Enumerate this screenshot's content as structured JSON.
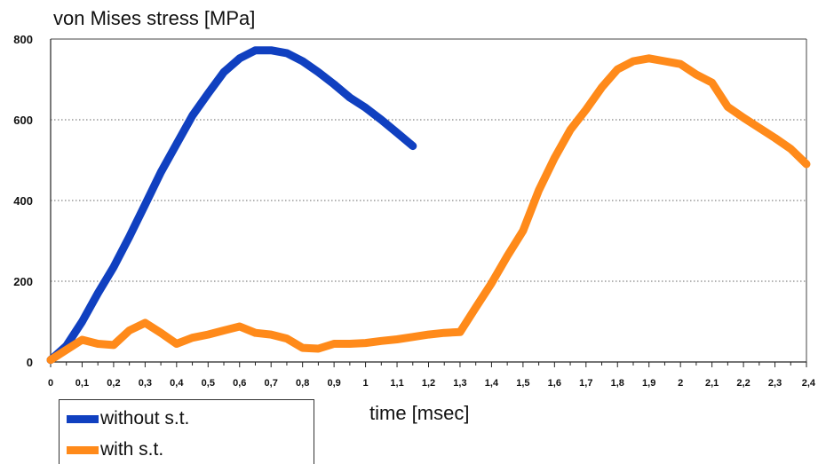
{
  "chart_data": {
    "type": "line",
    "title": "",
    "ylabel": "von Mises stress [MPa]",
    "xlabel": "time [msec]",
    "xlim": [
      0,
      2.4
    ],
    "ylim": [
      0,
      800
    ],
    "yticks": [
      0,
      200,
      400,
      600,
      800
    ],
    "ytick_labels": [
      "0",
      "200",
      "400",
      "600",
      "800"
    ],
    "xticks": [
      0,
      0.1,
      0.2,
      0.3,
      0.4,
      0.5,
      0.6,
      0.7,
      0.8,
      0.9,
      1,
      1.1,
      1.2,
      1.3,
      1.4,
      1.5,
      1.6,
      1.7,
      1.8,
      1.9,
      2,
      2.1,
      2.2,
      2.3,
      2.4
    ],
    "xtick_labels": [
      "0",
      "0,1",
      "0,2",
      "0,3",
      "0,4",
      "0,5",
      "0,6",
      "0,7",
      "0,8",
      "0,9",
      "1",
      "1,1",
      "1,2",
      "1,3",
      "1,4",
      "1,5",
      "1,6",
      "1,7",
      "1,8",
      "1,9",
      "2",
      "2,1",
      "2,2",
      "2,3",
      "2,4"
    ],
    "grid": "horizontal dotted",
    "legend_position": "bottom-left",
    "series": [
      {
        "name": "without s.t.",
        "color": "#1040c0",
        "x": [
          0,
          0.05,
          0.1,
          0.15,
          0.2,
          0.25,
          0.3,
          0.35,
          0.4,
          0.45,
          0.5,
          0.55,
          0.6,
          0.65,
          0.7,
          0.75,
          0.8,
          0.85,
          0.9,
          0.95,
          1.0,
          1.05,
          1.1,
          1.15
        ],
        "y": [
          5,
          40,
          100,
          170,
          235,
          310,
          390,
          470,
          540,
          610,
          665,
          718,
          752,
          772,
          772,
          765,
          745,
          718,
          688,
          655,
          630,
          600,
          568,
          535
        ]
      },
      {
        "name": "with s.t.",
        "color": "#ff8a1a",
        "x": [
          0,
          0.04,
          0.1,
          0.15,
          0.2,
          0.25,
          0.3,
          0.35,
          0.4,
          0.45,
          0.5,
          0.55,
          0.6,
          0.65,
          0.7,
          0.75,
          0.8,
          0.85,
          0.9,
          0.95,
          1.0,
          1.05,
          1.1,
          1.15,
          1.2,
          1.25,
          1.3,
          1.35,
          1.4,
          1.45,
          1.5,
          1.55,
          1.6,
          1.65,
          1.7,
          1.75,
          1.8,
          1.85,
          1.9,
          1.95,
          2.0,
          2.05,
          2.1,
          2.15,
          2.2,
          2.25,
          2.3,
          2.35,
          2.4
        ],
        "y": [
          5,
          25,
          55,
          45,
          42,
          78,
          97,
          72,
          45,
          60,
          68,
          78,
          88,
          72,
          68,
          58,
          35,
          33,
          45,
          45,
          47,
          52,
          56,
          62,
          68,
          72,
          74,
          135,
          195,
          262,
          325,
          425,
          505,
          575,
          625,
          680,
          725,
          745,
          752,
          745,
          738,
          712,
          692,
          632,
          605,
          580,
          555,
          528,
          490
        ]
      }
    ]
  }
}
